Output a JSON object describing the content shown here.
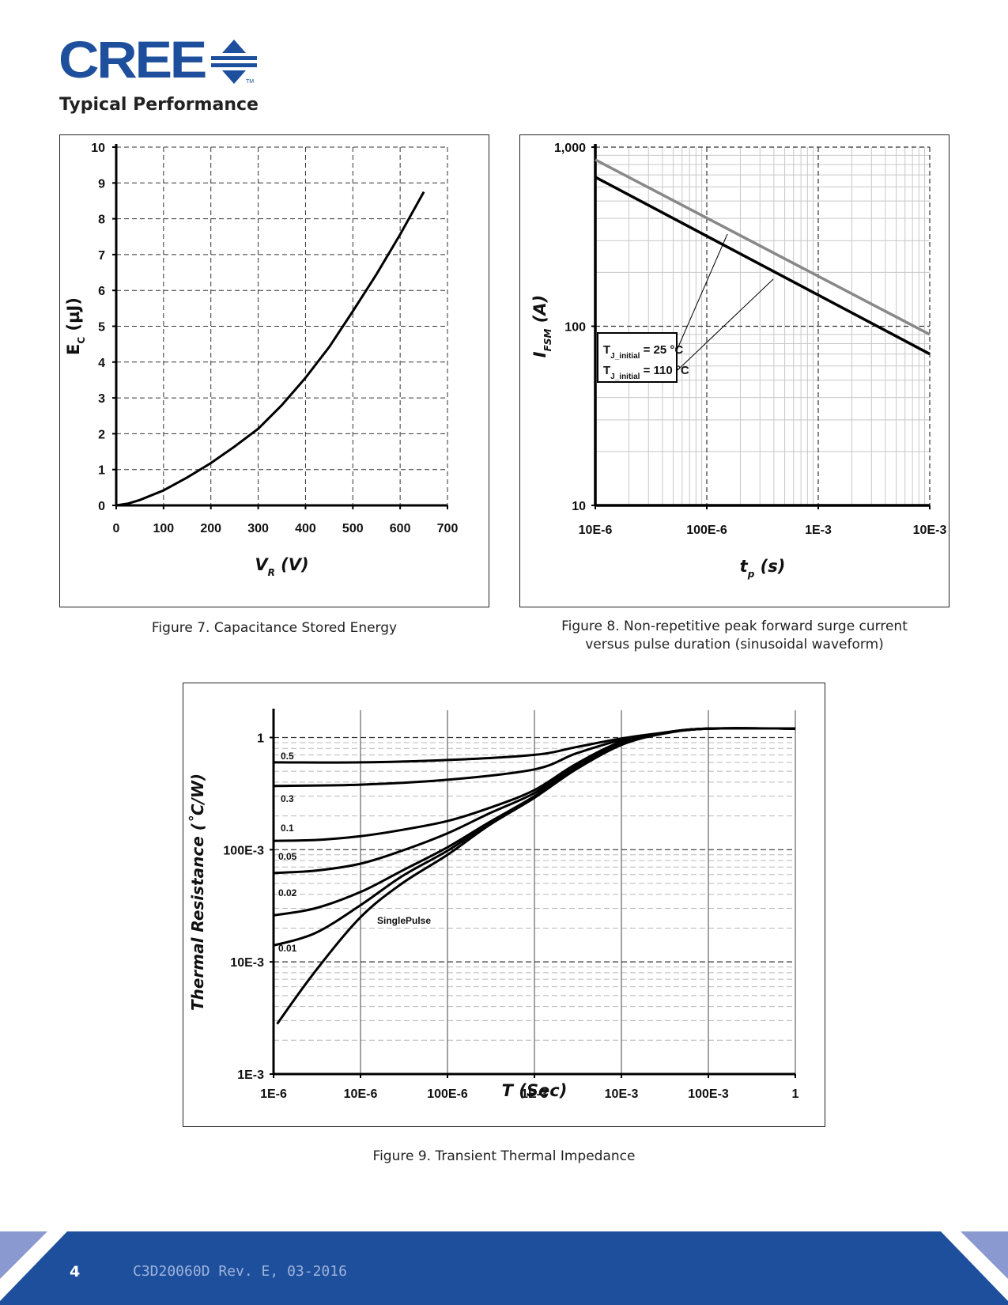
{
  "header": {
    "logo_text": "CREE",
    "logo_tm": "TM",
    "section_title": "Typical Performance",
    "brand_color": "#1d4f9c"
  },
  "figures": {
    "fig7_caption": "Figure 7. Capacitance Stored Energy",
    "fig8_caption_line1": "Figure 8. Non-repetitive peak forward surge current",
    "fig8_caption_line2": "versus pulse duration (sinusoidal waveform)",
    "fig9_caption": "Figure 9. Transient Thermal Impedance"
  },
  "footer": {
    "page_number": "4",
    "doc_id": "C3D20060D Rev. E, 03-2016",
    "bar_color": "#1d4f9c",
    "accent_color": "#8a99cf"
  },
  "chart_data": [
    {
      "id": "fig7",
      "type": "line",
      "title": "Figure 7. Capacitance Stored Energy",
      "xlabel": "V_R (V)",
      "ylabel": "E_C (µJ)",
      "xlabel_main": "V",
      "xlabel_sub": "R",
      "xlabel_unit": "(V)",
      "ylabel_main": "E",
      "ylabel_sub": "C",
      "ylabel_unit": "(µJ)",
      "xlim": [
        0,
        700
      ],
      "ylim": [
        0,
        10
      ],
      "xticks": [
        "0",
        "100",
        "200",
        "300",
        "400",
        "500",
        "600",
        "700"
      ],
      "yticks": [
        "0",
        "1",
        "2",
        "3",
        "4",
        "5",
        "6",
        "7",
        "8",
        "9",
        "10"
      ],
      "grid": "dashed",
      "series": [
        {
          "name": "Ec",
          "x": [
            0,
            25,
            50,
            100,
            150,
            200,
            250,
            300,
            350,
            400,
            450,
            500,
            550,
            600,
            650
          ],
          "y": [
            0,
            0.05,
            0.15,
            0.42,
            0.78,
            1.18,
            1.64,
            2.14,
            2.8,
            3.56,
            4.42,
            5.42,
            6.45,
            7.56,
            8.75
          ]
        }
      ]
    },
    {
      "id": "fig8",
      "type": "line",
      "title": "Figure 8. Non-repetitive peak forward surge current versus pulse duration (sinusoidal waveform)",
      "xlabel": "t_p (s)",
      "ylabel": "I_FSM (A)",
      "xlabel_main": "t",
      "xlabel_sub": "p",
      "xlabel_unit": "(s)",
      "ylabel_main": "I",
      "ylabel_sub": "FSM",
      "ylabel_unit": "(A)",
      "xscale": "log",
      "yscale": "log",
      "xlim": [
        1e-05,
        0.01
      ],
      "ylim": [
        10,
        1000
      ],
      "xticks": [
        "10E-6",
        "100E-6",
        "1E-3",
        "10E-3"
      ],
      "yticks": [
        "10",
        "100",
        "1,000"
      ],
      "grid": "log",
      "legend": {
        "entries": [
          {
            "main": "T",
            "sub": "J_initial",
            "rest": " = 25 °C"
          },
          {
            "main": "T",
            "sub": "J_initial",
            "rest": " = 110 °C"
          }
        ],
        "placement": "center-left"
      },
      "series": [
        {
          "name": "T_J_initial = 25 °C",
          "color": "#888888",
          "x": [
            1e-05,
            0.01
          ],
          "y": [
            850,
            90
          ]
        },
        {
          "name": "T_J_initial = 110 °C",
          "color": "#000000",
          "x": [
            1e-05,
            0.01
          ],
          "y": [
            680,
            70
          ]
        }
      ]
    },
    {
      "id": "fig9",
      "type": "line",
      "title": "Figure 9. Transient Thermal Impedance",
      "xlabel": "T (Sec)",
      "ylabel": "Thermal Resistance (˚C/W)",
      "xscale": "log",
      "yscale": "log",
      "xlim": [
        1e-06,
        1
      ],
      "ylim": [
        0.001,
        1.75
      ],
      "xticks": [
        "1E-6",
        "10E-6",
        "100E-6",
        "1E-3",
        "10E-3",
        "100E-3",
        "1"
      ],
      "yticks": [
        "1E-3",
        "10E-3",
        "100E-3",
        "1"
      ],
      "grid": "log",
      "series": [
        {
          "name": "0.5",
          "x": [
            1e-06,
            1e-05,
            0.0001,
            0.001,
            0.003,
            0.01,
            0.03,
            0.1,
            1
          ],
          "y": [
            0.6,
            0.6,
            0.63,
            0.7,
            0.82,
            0.98,
            1.1,
            1.2,
            1.2
          ]
        },
        {
          "name": "0.3",
          "x": [
            1e-06,
            1e-05,
            0.0001,
            0.001,
            0.003,
            0.01,
            0.03,
            0.1,
            1
          ],
          "y": [
            0.37,
            0.38,
            0.42,
            0.52,
            0.72,
            0.95,
            1.1,
            1.2,
            1.2
          ]
        },
        {
          "name": "0.1",
          "x": [
            1e-06,
            3e-06,
            1e-05,
            3e-05,
            0.0001,
            0.0003,
            0.001,
            0.003,
            0.01,
            0.03,
            0.1,
            1
          ],
          "y": [
            0.12,
            0.122,
            0.132,
            0.15,
            0.18,
            0.235,
            0.34,
            0.58,
            0.92,
            1.1,
            1.2,
            1.2
          ]
        },
        {
          "name": "0.05",
          "x": [
            1e-06,
            3e-06,
            1e-05,
            3e-05,
            0.0001,
            0.0003,
            0.001,
            0.003,
            0.01,
            0.03,
            0.1,
            1
          ],
          "y": [
            0.062,
            0.065,
            0.075,
            0.098,
            0.14,
            0.21,
            0.32,
            0.56,
            0.9,
            1.1,
            1.2,
            1.2
          ]
        },
        {
          "name": "0.02",
          "x": [
            1e-06,
            3e-06,
            1e-05,
            3e-05,
            0.0001,
            0.0003,
            0.001,
            0.003,
            0.01,
            0.03,
            0.1,
            1
          ],
          "y": [
            0.026,
            0.03,
            0.042,
            0.065,
            0.105,
            0.175,
            0.3,
            0.54,
            0.88,
            1.09,
            1.2,
            1.2
          ]
        },
        {
          "name": "0.01",
          "x": [
            1e-06,
            3e-06,
            1e-05,
            3e-05,
            0.0001,
            0.0003,
            0.001,
            0.003,
            0.01,
            0.03,
            0.1,
            1
          ],
          "y": [
            0.014,
            0.018,
            0.032,
            0.058,
            0.098,
            0.17,
            0.295,
            0.53,
            0.87,
            1.09,
            1.2,
            1.2
          ]
        },
        {
          "name": "SinglePulse",
          "x": [
            1.1e-06,
            3e-06,
            1e-05,
            3e-05,
            0.0001,
            0.0003,
            0.001,
            0.003,
            0.01,
            0.03,
            0.1,
            1
          ],
          "y": [
            0.0028,
            0.0082,
            0.025,
            0.05,
            0.09,
            0.165,
            0.29,
            0.52,
            0.86,
            1.08,
            1.2,
            1.2
          ]
        }
      ]
    }
  ]
}
